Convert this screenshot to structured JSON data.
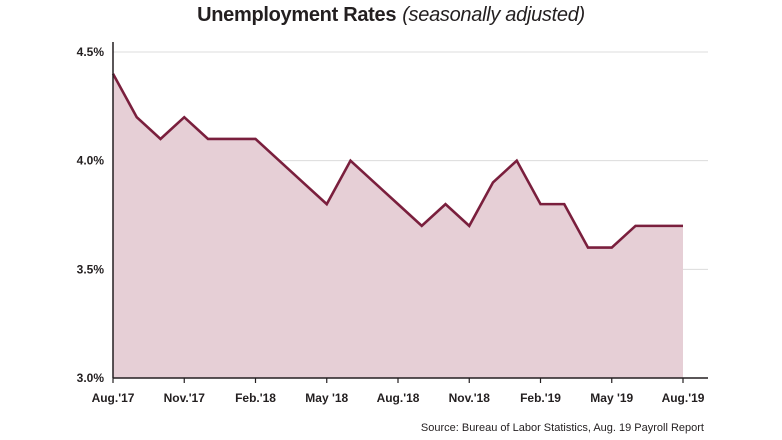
{
  "title": "Unemployment Rates",
  "subtitle": "(seasonally adjusted)",
  "source": "Source: Bureau of Labor Statistics, Aug. 19 Payroll Report",
  "colors": {
    "line": "#7a1f3d",
    "area": "#e6cfd6",
    "grid": "#dcdcdc",
    "axis": "#231f20"
  },
  "chart_data": {
    "type": "area",
    "title": "Unemployment Rates (seasonally adjusted)",
    "xlabel": "",
    "ylabel": "",
    "ylim": [
      3.0,
      4.5
    ],
    "y_ticks": [
      3.0,
      3.5,
      4.0,
      4.5
    ],
    "y_tick_labels": [
      "3.0%",
      "3.5%",
      "4.0%",
      "4.5%"
    ],
    "x_tick_labels": [
      "Aug.'17",
      "Nov.'17",
      "Feb.'18",
      "May '18",
      "Aug.'18",
      "Nov.'18",
      "Feb.'19",
      "May '19",
      "Aug.'19"
    ],
    "grid": true,
    "series": [
      {
        "x": [
          "2017-08",
          "2017-09",
          "2017-10",
          "2017-11",
          "2017-12",
          "2018-01",
          "2018-02",
          "2018-03",
          "2018-04",
          "2018-05",
          "2018-06",
          "2018-07",
          "2018-08",
          "2018-09",
          "2018-10",
          "2018-11",
          "2018-12",
          "2019-01",
          "2019-02",
          "2019-03",
          "2019-04",
          "2019-05",
          "2019-06",
          "2019-07",
          "2019-08"
        ],
        "values": [
          4.4,
          4.2,
          4.1,
          4.2,
          4.1,
          4.1,
          4.1,
          4.0,
          3.9,
          3.8,
          4.0,
          3.9,
          3.8,
          3.7,
          3.8,
          3.7,
          3.9,
          4.0,
          3.8,
          3.8,
          3.6,
          3.6,
          3.7,
          3.7,
          3.7
        ]
      }
    ]
  }
}
